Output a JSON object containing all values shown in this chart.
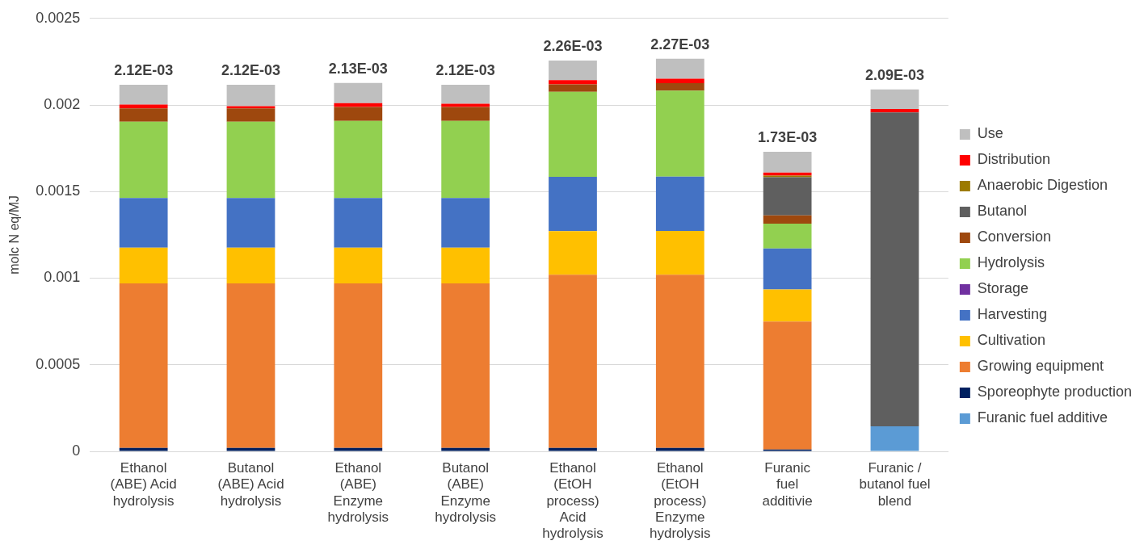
{
  "chart_data": {
    "type": "bar",
    "stacked": true,
    "ylabel": "molc N eq/MJ",
    "categories": [
      "Ethanol (ABE) Acid hydrolysis",
      "Butanol (ABE) Acid hydrolysis",
      "Ethanol (ABE) Enzyme hydrolysis",
      "Butanol (ABE) Enzyme hydrolysis",
      "Ethanol (EtOH process) Acid hydrolysis",
      "Ethanol (EtOH process) Enzyme hydrolysis",
      "Furanic fuel additivie",
      "Furanic / butanol fuel blend"
    ],
    "series": [
      {
        "name": "Furanic fuel additive",
        "color": "#5b9bd5",
        "values": [
          0,
          0,
          0,
          0,
          0,
          0,
          0,
          0.000145
        ]
      },
      {
        "name": "Sporeophyte production",
        "color": "#002060",
        "values": [
          2e-05,
          2e-05,
          2e-05,
          2e-05,
          2e-05,
          2e-05,
          1e-05,
          0
        ]
      },
      {
        "name": "Growing equipment",
        "color": "#ed7d31",
        "values": [
          0.00095,
          0.00095,
          0.00095,
          0.00095,
          0.001,
          0.001,
          0.00074,
          0
        ]
      },
      {
        "name": "Cultivation",
        "color": "#ffc000",
        "values": [
          0.000206,
          0.000206,
          0.000206,
          0.000206,
          0.000252,
          0.000253,
          0.000185,
          0
        ]
      },
      {
        "name": "Harvesting",
        "color": "#4472c4",
        "values": [
          0.000287,
          0.000287,
          0.000287,
          0.000287,
          0.000313,
          0.000313,
          0.000237,
          0
        ]
      },
      {
        "name": "Storage",
        "color": "#7030a0",
        "values": [
          0,
          0,
          0,
          0,
          0,
          0,
          0,
          0
        ]
      },
      {
        "name": "Hydrolysis",
        "color": "#92d050",
        "values": [
          0.000441,
          0.000441,
          0.000445,
          0.000445,
          0.000491,
          0.000497,
          0.000143,
          0
        ]
      },
      {
        "name": "Conversion",
        "color": "#9e480e",
        "values": [
          7.6e-05,
          7.6e-05,
          8.1e-05,
          8.1e-05,
          4.3e-05,
          4.3e-05,
          4.8e-05,
          0
        ]
      },
      {
        "name": "Butanol",
        "color": "#5f5f5f",
        "values": [
          0,
          0,
          0,
          0,
          0,
          0,
          0.00022,
          0.001812
        ]
      },
      {
        "name": "Anaerobic Digestion",
        "color": "#9c7a00",
        "values": [
          null,
          null,
          null,
          null,
          null,
          null,
          9e-06,
          0
        ]
      },
      {
        "name": "Distribution",
        "color": "#ff0000",
        "values": [
          2.2e-05,
          1.3e-05,
          2.2e-05,
          1.8e-05,
          2.5e-05,
          2.6e-05,
          1.8e-05,
          2e-05
        ]
      },
      {
        "name": "Use",
        "color": "#bfbfbf",
        "values": [
          0.000115,
          0.000124,
          0.000116,
          0.00011,
          0.000113,
          0.000115,
          0.00012,
          0.000113
        ]
      }
    ],
    "totals": [
      "2.12E-03",
      "2.12E-03",
      "2.13E-03",
      "2.12E-03",
      "2.26E-03",
      "2.27E-03",
      "1.73E-03",
      "2.09E-03"
    ],
    "ylim": [
      0,
      0.0025
    ],
    "yticks": [
      0,
      0.0005,
      0.001,
      0.0015,
      0.002,
      0.0025
    ],
    "grid": "y",
    "legend": "right"
  }
}
